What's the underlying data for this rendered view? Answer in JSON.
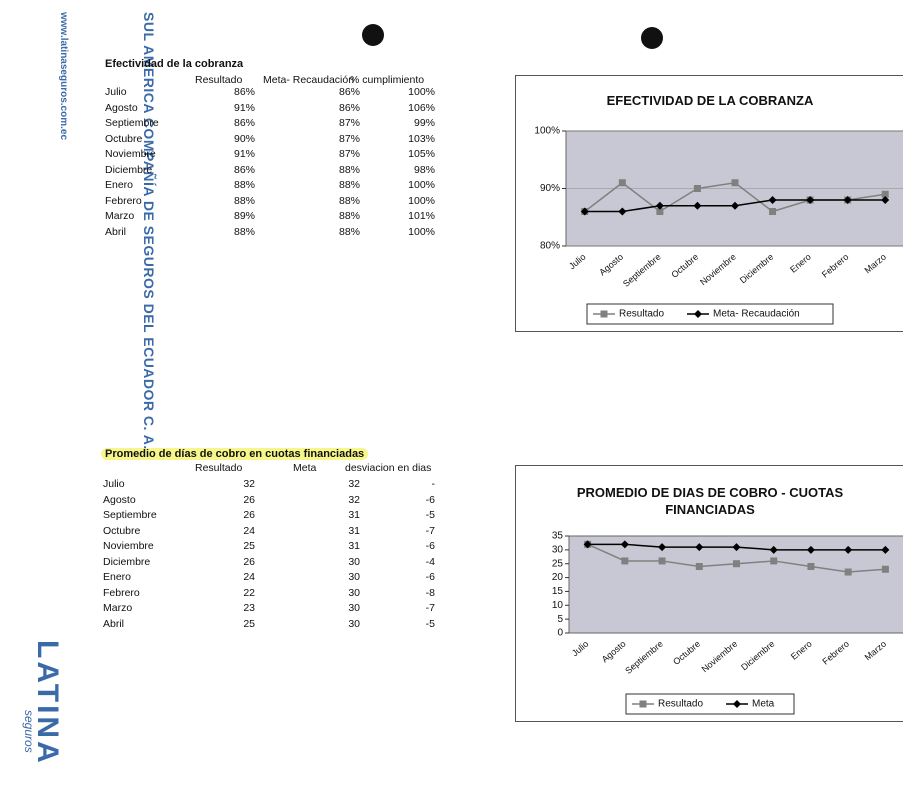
{
  "letterhead": {
    "company": "SUL AMERICA COMPAÑÍA DE SEGUROS DEL ECUADOR C. A.",
    "website": "www.latinaseguros.com.ec",
    "logo": "LATINA",
    "logo_sub": "seguros"
  },
  "table1": {
    "title": "Efectividad de la cobranza",
    "headers": [
      "Resultado",
      "Meta- Recaudación",
      "% cumplimiento"
    ],
    "rows": [
      [
        "Julio",
        "86%",
        "86%",
        "100%"
      ],
      [
        "Agosto",
        "91%",
        "86%",
        "106%"
      ],
      [
        "Septiembre",
        "86%",
        "87%",
        "99%"
      ],
      [
        "Octubre",
        "90%",
        "87%",
        "103%"
      ],
      [
        "Noviembre",
        "91%",
        "87%",
        "105%"
      ],
      [
        "Diciembre",
        "86%",
        "88%",
        "98%"
      ],
      [
        "Enero",
        "88%",
        "88%",
        "100%"
      ],
      [
        "Febrero",
        "88%",
        "88%",
        "100%"
      ],
      [
        "Marzo",
        "89%",
        "88%",
        "101%"
      ],
      [
        "Abril",
        "88%",
        "88%",
        "100%"
      ]
    ]
  },
  "table2": {
    "title": "Promedio de días de cobro en cuotas financiadas",
    "headers": [
      "Resultado",
      "Meta",
      "desviacion en dias"
    ],
    "rows": [
      [
        "Julio",
        "32",
        "32",
        "-"
      ],
      [
        "Agosto",
        "26",
        "32",
        "-6"
      ],
      [
        "Septiembre",
        "26",
        "31",
        "-5"
      ],
      [
        "Octubre",
        "24",
        "31",
        "-7"
      ],
      [
        "Noviembre",
        "25",
        "31",
        "-6"
      ],
      [
        "Diciembre",
        "26",
        "30",
        "-4"
      ],
      [
        "Enero",
        "24",
        "30",
        "-6"
      ],
      [
        "Febrero",
        "22",
        "30",
        "-8"
      ],
      [
        "Marzo",
        "23",
        "30",
        "-7"
      ],
      [
        "Abril",
        "25",
        "30",
        "-5"
      ]
    ]
  },
  "chart_data": [
    {
      "type": "line",
      "title": "EFECTIVIDAD DE LA COBRANZA",
      "categories": [
        "Julio",
        "Agosto",
        "Septiembre",
        "Octubre",
        "Noviembre",
        "Diciembre",
        "Enero",
        "Febrero",
        "Marzo"
      ],
      "series": [
        {
          "name": "Resultado",
          "color": "#808080",
          "marker": "square",
          "values": [
            86,
            91,
            86,
            90,
            91,
            86,
            88,
            88,
            89
          ]
        },
        {
          "name": "Meta- Recaudación",
          "color": "#000000",
          "marker": "diamond",
          "values": [
            86,
            86,
            87,
            87,
            87,
            88,
            88,
            88,
            88
          ]
        }
      ],
      "ylim": [
        80,
        100
      ],
      "yticks": [
        {
          "value": 80,
          "label": "80%"
        },
        {
          "value": 90,
          "label": "90%"
        },
        {
          "value": 100,
          "label": "100%"
        }
      ],
      "grid": true,
      "legend": "bottom"
    },
    {
      "type": "line",
      "title": "PROMEDIO DE DIAS DE COBRO - CUOTAS FINANCIADAS",
      "categories": [
        "Julio",
        "Agosto",
        "Septiembre",
        "Octubre",
        "Noviembre",
        "Diciembre",
        "Enero",
        "Febrero",
        "Marzo"
      ],
      "series": [
        {
          "name": "Resultado",
          "color": "#808080",
          "marker": "square",
          "values": [
            32,
            26,
            26,
            24,
            25,
            26,
            24,
            22,
            23
          ]
        },
        {
          "name": "Meta",
          "color": "#000000",
          "marker": "diamond",
          "values": [
            32,
            32,
            31,
            31,
            31,
            30,
            30,
            30,
            30
          ]
        }
      ],
      "ylim": [
        0,
        35
      ],
      "yticks": [
        0,
        5,
        10,
        15,
        20,
        25,
        30,
        35
      ],
      "grid": false,
      "legend": "bottom"
    }
  ]
}
